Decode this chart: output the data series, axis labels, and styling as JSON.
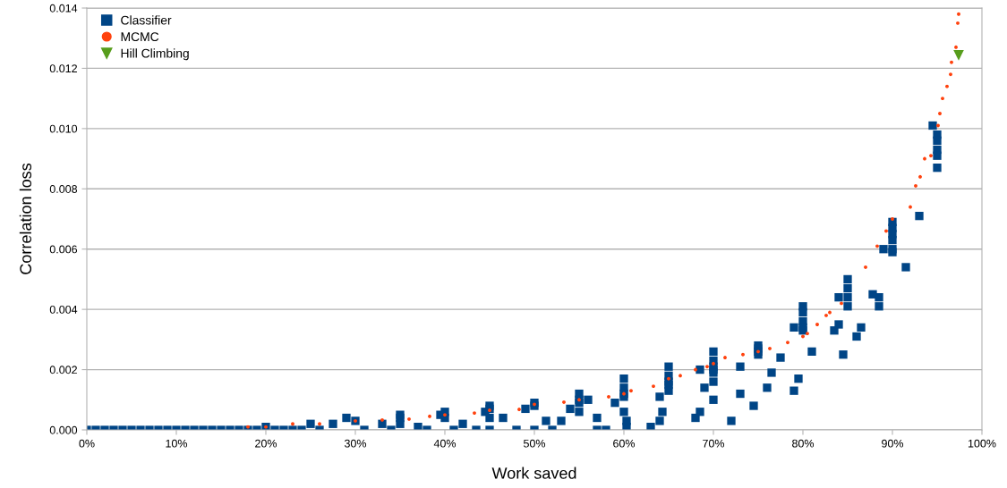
{
  "chart_data": {
    "type": "scatter",
    "xlabel": "Work saved",
    "ylabel": "Correlation loss",
    "xlim": [
      0,
      1
    ],
    "ylim": [
      0,
      0.014
    ],
    "xticks": [
      {
        "value": 0,
        "label": "0%"
      },
      {
        "value": 0.1,
        "label": "10%"
      },
      {
        "value": 0.2,
        "label": "20%"
      },
      {
        "value": 0.3,
        "label": "30%"
      },
      {
        "value": 0.4,
        "label": "40%"
      },
      {
        "value": 0.5,
        "label": "50%"
      },
      {
        "value": 0.6,
        "label": "60%"
      },
      {
        "value": 0.7,
        "label": "70%"
      },
      {
        "value": 0.8,
        "label": "80%"
      },
      {
        "value": 0.9,
        "label": "90%"
      },
      {
        "value": 1,
        "label": "100%"
      }
    ],
    "yticks": [
      {
        "value": 0,
        "label": "0.000"
      },
      {
        "value": 0.002,
        "label": "0.002"
      },
      {
        "value": 0.004,
        "label": "0.004"
      },
      {
        "value": 0.006,
        "label": "0.006"
      },
      {
        "value": 0.008,
        "label": "0.008"
      },
      {
        "value": 0.01,
        "label": "0.010"
      },
      {
        "value": 0.012,
        "label": "0.012"
      },
      {
        "value": 0.014,
        "label": "0.014"
      }
    ],
    "grid": "y",
    "legend": "top left",
    "series": [
      {
        "name": "MCMC",
        "color": "#ff420e",
        "marker": "circle",
        "x": [
          0.18,
          0.2,
          0.23,
          0.26,
          0.3,
          0.33,
          0.36,
          0.383,
          0.4,
          0.433,
          0.45,
          0.483,
          0.5,
          0.533,
          0.55,
          0.583,
          0.6,
          0.608,
          0.633,
          0.65,
          0.663,
          0.68,
          0.693,
          0.7,
          0.713,
          0.733,
          0.75,
          0.763,
          0.783,
          0.8,
          0.805,
          0.816,
          0.826,
          0.83,
          0.843,
          0.87,
          0.883,
          0.893,
          0.9,
          0.92,
          0.926,
          0.931,
          0.936,
          0.943,
          0.951,
          0.953,
          0.956,
          0.961,
          0.965,
          0.966,
          0.971,
          0.973,
          0.974
        ],
        "values": [
          0.0001,
          0.0001,
          0.0002,
          0.0002,
          0.0003,
          0.00033,
          0.00036,
          0.00045,
          0.0005,
          0.00056,
          0.00065,
          0.00068,
          0.00085,
          0.00092,
          0.001,
          0.0011,
          0.0012,
          0.0013,
          0.00145,
          0.0017,
          0.0018,
          0.002,
          0.0021,
          0.0022,
          0.0024,
          0.0025,
          0.0026,
          0.0027,
          0.0029,
          0.0031,
          0.0032,
          0.0035,
          0.0038,
          0.0039,
          0.0042,
          0.0054,
          0.0061,
          0.0066,
          0.007,
          0.0074,
          0.0081,
          0.0084,
          0.009,
          0.0091,
          0.0101,
          0.0105,
          0.011,
          0.0114,
          0.0118,
          0.0122,
          0.0127,
          0.0135,
          0.0138
        ]
      },
      {
        "name": "Classifier",
        "color": "#004586",
        "marker": "square",
        "x": [
          0,
          0.01,
          0.02,
          0.03,
          0.04,
          0.05,
          0.06,
          0.07,
          0.08,
          0.09,
          0.1,
          0.11,
          0.12,
          0.13,
          0.14,
          0.15,
          0.16,
          0.17,
          0.18,
          0.19,
          0.2,
          0.21,
          0.22,
          0.23,
          0.24,
          0.25,
          0.26,
          0.275,
          0.29,
          0.3,
          0.31,
          0.33,
          0.34,
          0.35,
          0.35,
          0.35,
          0.37,
          0.38,
          0.395,
          0.4,
          0.4,
          0.41,
          0.42,
          0.435,
          0.445,
          0.45,
          0.45,
          0.45,
          0.45,
          0.465,
          0.48,
          0.49,
          0.5,
          0.5,
          0.5,
          0.513,
          0.52,
          0.53,
          0.54,
          0.55,
          0.55,
          0.55,
          0.55,
          0.56,
          0.57,
          0.57,
          0.58,
          0.59,
          0.6,
          0.6,
          0.6,
          0.6,
          0.6,
          0.603,
          0.603,
          0.63,
          0.64,
          0.64,
          0.643,
          0.65,
          0.65,
          0.65,
          0.65,
          0.65,
          0.68,
          0.685,
          0.685,
          0.69,
          0.7,
          0.7,
          0.7,
          0.7,
          0.7,
          0.7,
          0.7,
          0.72,
          0.73,
          0.73,
          0.745,
          0.75,
          0.75,
          0.75,
          0.75,
          0.76,
          0.765,
          0.775,
          0.79,
          0.795,
          0.79,
          0.8,
          0.8,
          0.8,
          0.8,
          0.8,
          0.81,
          0.835,
          0.84,
          0.84,
          0.845,
          0.85,
          0.85,
          0.85,
          0.85,
          0.86,
          0.865,
          0.878,
          0.885,
          0.885,
          0.89,
          0.9,
          0.9,
          0.9,
          0.9,
          0.9,
          0.9,
          0.915,
          0.93,
          0.945,
          0.95,
          0.95,
          0.95,
          0.95,
          0.95
        ],
        "values": [
          0,
          0,
          0,
          0,
          0,
          0,
          0,
          0,
          0,
          0,
          0,
          0,
          0,
          0,
          0,
          0,
          0,
          0,
          0,
          0,
          0.0001,
          0,
          0,
          0,
          0,
          0.0002,
          0,
          0.0002,
          0.0004,
          0.0003,
          0,
          0.0002,
          0,
          0.0004,
          0.0005,
          0.0002,
          0.0001,
          0,
          0.0005,
          0.0006,
          0.0004,
          0,
          0.0002,
          0,
          0.0006,
          0.0007,
          0.0008,
          0.0004,
          0,
          0.0004,
          0,
          0.0007,
          0.0009,
          0.0008,
          0,
          0.0003,
          0,
          0.0003,
          0.0007,
          0.0012,
          0.001,
          0.0009,
          0.0006,
          0.001,
          0,
          0.0004,
          0,
          0.0009,
          0.0017,
          0.0014,
          0.0012,
          0.0011,
          0.0006,
          0.0003,
          0.0001,
          0.0001,
          0.0011,
          0.0003,
          0.0006,
          0.0021,
          0.0018,
          0.0016,
          0.0015,
          0.0013,
          0.0004,
          0.0006,
          0.002,
          0.0014,
          0.0026,
          0.0023,
          0.0021,
          0.002,
          0.0019,
          0.0016,
          0.001,
          0.0003,
          0.0021,
          0.0012,
          0.0008,
          0.0028,
          0.0027,
          0.0026,
          0.0025,
          0.0014,
          0.0019,
          0.0024,
          0.0013,
          0.0017,
          0.0034,
          0.0041,
          0.0039,
          0.0036,
          0.0034,
          0.0033,
          0.0026,
          0.0033,
          0.0044,
          0.0035,
          0.0025,
          0.005,
          0.0047,
          0.0044,
          0.0041,
          0.0031,
          0.0034,
          0.0045,
          0.0044,
          0.0041,
          0.006,
          0.0069,
          0.0067,
          0.0065,
          0.0063,
          0.006,
          0.0059,
          0.0054,
          0.0071,
          0.0101,
          0.0098,
          0.0096,
          0.0093,
          0.0091,
          0.0087
        ]
      },
      {
        "name": "Hill Climbing",
        "color": "#579d1c",
        "marker": "triangle",
        "x": [
          0.974
        ],
        "values": [
          0.01243
        ]
      }
    ]
  }
}
